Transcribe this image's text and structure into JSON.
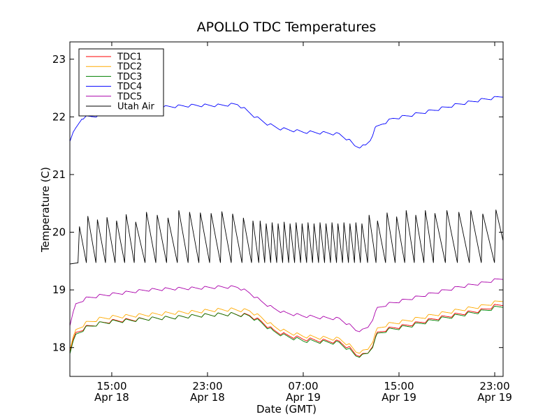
{
  "chart_data": {
    "type": "line",
    "title": "APOLLO TDC Temperatures",
    "xlabel": "Date (GMT)",
    "ylabel": "Temperature (C)",
    "xlim": [
      11.5,
      47.7
    ],
    "ylim": [
      17.5,
      23.3
    ],
    "x_units": "hours since Apr 18 00:00 GMT",
    "grid": false,
    "legend_position": "top-left",
    "x_ticks": [
      {
        "value": 15,
        "label": "15:00",
        "date": "Apr 18"
      },
      {
        "value": 23,
        "label": "23:00",
        "date": "Apr 18"
      },
      {
        "value": 31,
        "label": "07:00",
        "date": "Apr 19"
      },
      {
        "value": 39,
        "label": "15:00",
        "date": "Apr 19"
      },
      {
        "value": 47,
        "label": "23:00",
        "date": "Apr 19"
      }
    ],
    "y_ticks": [
      {
        "value": 18,
        "label": "18"
      },
      {
        "value": 19,
        "label": "19"
      },
      {
        "value": 20,
        "label": "20"
      },
      {
        "value": 21,
        "label": "21"
      },
      {
        "value": 22,
        "label": "22"
      },
      {
        "value": 23,
        "label": "23"
      }
    ],
    "series": [
      {
        "name": "TDC1",
        "color": "#ff0000",
        "kind": "smooth",
        "points": [
          [
            11.5,
            17.95
          ],
          [
            12.0,
            18.25
          ],
          [
            12.8,
            18.35
          ],
          [
            14.0,
            18.42
          ],
          [
            15.0,
            18.46
          ],
          [
            16.5,
            18.48
          ],
          [
            18.0,
            18.5
          ],
          [
            20.0,
            18.52
          ],
          [
            22.0,
            18.55
          ],
          [
            23.5,
            18.57
          ],
          [
            25.0,
            18.58
          ],
          [
            26.5,
            18.56
          ],
          [
            27.5,
            18.45
          ],
          [
            28.5,
            18.3
          ],
          [
            29.5,
            18.22
          ],
          [
            31.0,
            18.15
          ],
          [
            32.5,
            18.12
          ],
          [
            34.0,
            18.1
          ],
          [
            34.8,
            18.0
          ],
          [
            35.4,
            17.88
          ],
          [
            36.0,
            17.87
          ],
          [
            36.4,
            17.9
          ],
          [
            36.8,
            18.05
          ],
          [
            37.2,
            18.25
          ],
          [
            38.0,
            18.32
          ],
          [
            40.0,
            18.4
          ],
          [
            42.0,
            18.5
          ],
          [
            44.0,
            18.58
          ],
          [
            46.0,
            18.65
          ],
          [
            47.0,
            18.72
          ],
          [
            47.7,
            18.75
          ]
        ],
        "ripple": 0.06,
        "ripple_period": 1.1
      },
      {
        "name": "TDC2",
        "color": "#ffaa00",
        "kind": "smooth",
        "points": [
          [
            11.5,
            17.98
          ],
          [
            12.0,
            18.3
          ],
          [
            12.8,
            18.42
          ],
          [
            14.0,
            18.5
          ],
          [
            15.0,
            18.53
          ],
          [
            16.5,
            18.55
          ],
          [
            18.0,
            18.57
          ],
          [
            20.0,
            18.6
          ],
          [
            22.0,
            18.62
          ],
          [
            23.5,
            18.65
          ],
          [
            25.0,
            18.66
          ],
          [
            26.5,
            18.64
          ],
          [
            27.5,
            18.52
          ],
          [
            28.5,
            18.37
          ],
          [
            29.5,
            18.28
          ],
          [
            31.0,
            18.2
          ],
          [
            32.5,
            18.17
          ],
          [
            34.0,
            18.15
          ],
          [
            34.8,
            18.05
          ],
          [
            35.4,
            17.93
          ],
          [
            36.0,
            17.93
          ],
          [
            36.4,
            17.97
          ],
          [
            36.8,
            18.12
          ],
          [
            37.2,
            18.32
          ],
          [
            38.0,
            18.4
          ],
          [
            40.0,
            18.48
          ],
          [
            42.0,
            18.57
          ],
          [
            44.0,
            18.65
          ],
          [
            46.0,
            18.72
          ],
          [
            47.0,
            18.78
          ],
          [
            47.7,
            18.82
          ]
        ],
        "ripple": 0.06,
        "ripple_period": 1.1
      },
      {
        "name": "TDC3",
        "color": "#008000",
        "kind": "smooth",
        "points": [
          [
            11.5,
            17.92
          ],
          [
            12.0,
            18.22
          ],
          [
            12.8,
            18.34
          ],
          [
            14.0,
            18.42
          ],
          [
            15.0,
            18.45
          ],
          [
            16.5,
            18.47
          ],
          [
            18.0,
            18.5
          ],
          [
            20.0,
            18.52
          ],
          [
            22.0,
            18.55
          ],
          [
            23.5,
            18.57
          ],
          [
            25.0,
            18.58
          ],
          [
            26.5,
            18.55
          ],
          [
            27.5,
            18.43
          ],
          [
            28.5,
            18.28
          ],
          [
            29.5,
            18.2
          ],
          [
            31.0,
            18.12
          ],
          [
            32.5,
            18.1
          ],
          [
            34.0,
            18.08
          ],
          [
            34.8,
            17.97
          ],
          [
            35.4,
            17.86
          ],
          [
            36.0,
            17.86
          ],
          [
            36.4,
            17.9
          ],
          [
            36.8,
            18.03
          ],
          [
            37.2,
            18.23
          ],
          [
            38.0,
            18.3
          ],
          [
            40.0,
            18.38
          ],
          [
            42.0,
            18.48
          ],
          [
            44.0,
            18.56
          ],
          [
            46.0,
            18.63
          ],
          [
            47.0,
            18.69
          ],
          [
            47.7,
            18.72
          ]
        ],
        "ripple": 0.06,
        "ripple_period": 1.1
      },
      {
        "name": "TDC4",
        "color": "#0000ff",
        "kind": "smooth",
        "points": [
          [
            11.5,
            21.6
          ],
          [
            12.0,
            21.8
          ],
          [
            12.5,
            21.98
          ],
          [
            14.0,
            22.03
          ],
          [
            16.0,
            22.1
          ],
          [
            18.0,
            22.15
          ],
          [
            20.0,
            22.18
          ],
          [
            22.0,
            22.2
          ],
          [
            24.0,
            22.2
          ],
          [
            25.5,
            22.22
          ],
          [
            26.0,
            22.15
          ],
          [
            27.0,
            22.0
          ],
          [
            28.0,
            21.88
          ],
          [
            29.0,
            21.8
          ],
          [
            30.0,
            21.77
          ],
          [
            31.0,
            21.74
          ],
          [
            32.0,
            21.73
          ],
          [
            33.0,
            21.72
          ],
          [
            34.0,
            21.7
          ],
          [
            34.8,
            21.6
          ],
          [
            35.3,
            21.5
          ],
          [
            35.8,
            21.48
          ],
          [
            36.2,
            21.5
          ],
          [
            36.6,
            21.6
          ],
          [
            37.0,
            21.8
          ],
          [
            37.6,
            21.88
          ],
          [
            38.5,
            21.97
          ],
          [
            40.0,
            22.03
          ],
          [
            42.0,
            22.12
          ],
          [
            44.0,
            22.22
          ],
          [
            46.0,
            22.3
          ],
          [
            47.0,
            22.33
          ],
          [
            47.7,
            22.36
          ]
        ],
        "ripple": 0.05,
        "ripple_period": 1.1
      },
      {
        "name": "TDC5",
        "color": "#aa00aa",
        "kind": "smooth",
        "points": [
          [
            11.5,
            18.4
          ],
          [
            12.0,
            18.75
          ],
          [
            12.8,
            18.85
          ],
          [
            14.0,
            18.9
          ],
          [
            16.0,
            18.95
          ],
          [
            18.0,
            19.0
          ],
          [
            20.0,
            19.02
          ],
          [
            22.0,
            19.03
          ],
          [
            24.0,
            19.05
          ],
          [
            25.5,
            19.05
          ],
          [
            26.5,
            18.95
          ],
          [
            27.5,
            18.8
          ],
          [
            28.5,
            18.68
          ],
          [
            29.5,
            18.6
          ],
          [
            31.0,
            18.55
          ],
          [
            32.5,
            18.52
          ],
          [
            34.0,
            18.5
          ],
          [
            34.8,
            18.4
          ],
          [
            35.4,
            18.3
          ],
          [
            36.0,
            18.3
          ],
          [
            36.4,
            18.35
          ],
          [
            36.8,
            18.5
          ],
          [
            37.2,
            18.68
          ],
          [
            38.0,
            18.75
          ],
          [
            40.0,
            18.85
          ],
          [
            42.0,
            18.95
          ],
          [
            44.0,
            19.05
          ],
          [
            46.0,
            19.12
          ],
          [
            47.0,
            19.17
          ],
          [
            47.7,
            19.2
          ]
        ],
        "ripple": 0.05,
        "ripple_period": 1.1
      },
      {
        "name": "Utah Air",
        "color": "#000000",
        "kind": "sawtooth",
        "spikes": [
          [
            12.3,
            20.1
          ],
          [
            13.0,
            20.28
          ],
          [
            13.8,
            20.22
          ],
          [
            14.6,
            20.26
          ],
          [
            15.4,
            20.2
          ],
          [
            16.2,
            20.31
          ],
          [
            17.0,
            20.18
          ],
          [
            17.9,
            20.35
          ],
          [
            18.8,
            20.3
          ],
          [
            19.7,
            20.25
          ],
          [
            20.6,
            20.38
          ],
          [
            21.5,
            20.35
          ],
          [
            22.4,
            20.34
          ],
          [
            23.3,
            20.33
          ],
          [
            24.2,
            20.36
          ],
          [
            25.1,
            20.32
          ],
          [
            26.0,
            20.25
          ],
          [
            26.8,
            20.2
          ],
          [
            27.4,
            20.2
          ],
          [
            27.9,
            20.15
          ],
          [
            28.4,
            20.17
          ],
          [
            28.9,
            20.15
          ],
          [
            29.4,
            20.18
          ],
          [
            29.9,
            20.15
          ],
          [
            30.4,
            20.17
          ],
          [
            30.9,
            20.15
          ],
          [
            31.4,
            20.17
          ],
          [
            31.9,
            20.15
          ],
          [
            32.4,
            20.17
          ],
          [
            32.9,
            20.15
          ],
          [
            33.4,
            20.17
          ],
          [
            33.9,
            20.15
          ],
          [
            34.4,
            20.17
          ],
          [
            34.9,
            20.15
          ],
          [
            35.4,
            20.17
          ],
          [
            35.9,
            20.15
          ],
          [
            36.5,
            20.3
          ],
          [
            37.2,
            20.2
          ],
          [
            38.0,
            20.34
          ],
          [
            38.8,
            20.27
          ],
          [
            39.6,
            20.38
          ],
          [
            40.4,
            20.3
          ],
          [
            41.2,
            20.38
          ],
          [
            42.0,
            20.33
          ],
          [
            43.0,
            20.38
          ],
          [
            44.0,
            20.35
          ],
          [
            45.0,
            20.38
          ],
          [
            46.0,
            20.32
          ],
          [
            47.1,
            20.39
          ]
        ],
        "start": [
          11.5,
          19.45
        ],
        "end": [
          47.7,
          19.85
        ],
        "trough": 19.47
      }
    ]
  }
}
